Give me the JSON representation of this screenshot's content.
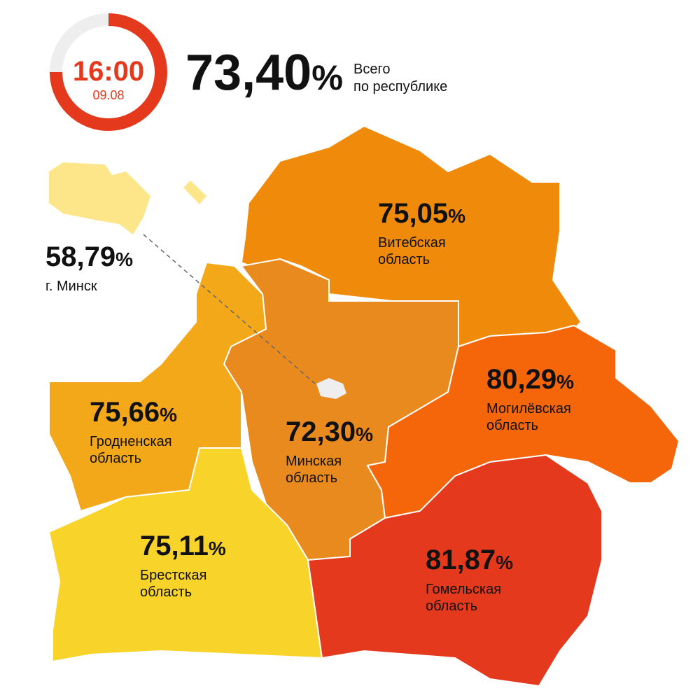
{
  "header": {
    "time": "16:00",
    "date": "09.08",
    "total": {
      "value": "73,40",
      "unit": "%"
    },
    "total_label": [
      "Всего",
      "по республике"
    ]
  },
  "regions": [
    {
      "value": "58,79",
      "unit": "%",
      "name": [
        "г. Минск"
      ]
    },
    {
      "value": "75,05",
      "unit": "%",
      "name": [
        "Витебская",
        "область"
      ]
    },
    {
      "value": "80,29",
      "unit": "%",
      "name": [
        "Могилёвская",
        "область"
      ]
    },
    {
      "value": "75,66",
      "unit": "%",
      "name": [
        "Гродненская",
        "область"
      ]
    },
    {
      "value": "72,30",
      "unit": "%",
      "name": [
        "Минская",
        "область"
      ]
    },
    {
      "value": "75,11",
      "unit": "%",
      "name": [
        "Брестская",
        "область"
      ]
    },
    {
      "value": "81,87",
      "unit": "%",
      "name": [
        "Гомельская",
        "область"
      ]
    }
  ]
}
